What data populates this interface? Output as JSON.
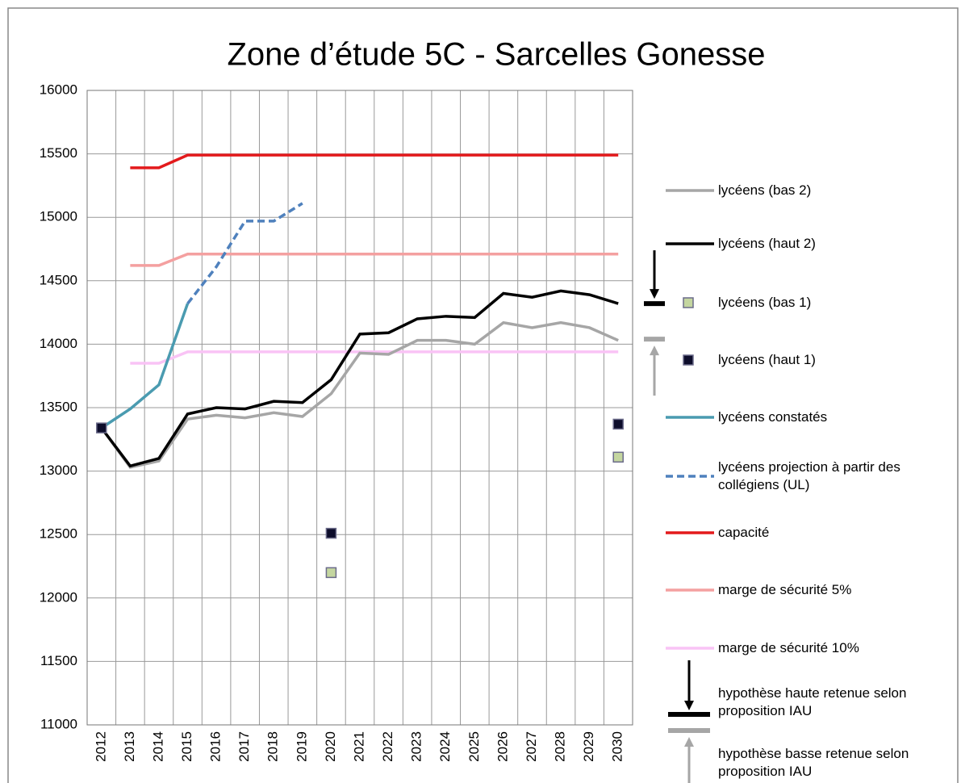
{
  "chart_data": {
    "type": "line",
    "title": "Zone d’étude 5C - Sarcelles Gonesse",
    "categories": [
      "2012",
      "2013",
      "2014",
      "2015",
      "2016",
      "2017",
      "2018",
      "2019",
      "2020",
      "2021",
      "2022",
      "2023",
      "2024",
      "2025",
      "2026",
      "2027",
      "2028",
      "2029",
      "2030"
    ],
    "ylim": [
      11000,
      16000
    ],
    "yticks": [
      11000,
      11500,
      12000,
      12500,
      13000,
      13500,
      14000,
      14500,
      15000,
      15500,
      16000
    ],
    "grid": true,
    "series": [
      {
        "name": "lycéens (bas 2)",
        "color": "#a6a6a6",
        "style": "line",
        "values": [
          13340,
          13030,
          13080,
          13410,
          13440,
          13420,
          13460,
          13430,
          13610,
          13930,
          13920,
          14030,
          14030,
          14000,
          14170,
          14130,
          14170,
          14130,
          14030
        ]
      },
      {
        "name": "lycéens (haut 2)",
        "color": "#000000",
        "style": "line",
        "values": [
          13340,
          13040,
          13100,
          13450,
          13500,
          13490,
          13550,
          13540,
          13720,
          14080,
          14090,
          14200,
          14220,
          14210,
          14400,
          14370,
          14420,
          14390,
          14320
        ]
      },
      {
        "name": "lycéens (bas 1)",
        "color": "#c4d6a0",
        "style": "marker",
        "values": [
          null,
          null,
          null,
          null,
          null,
          null,
          null,
          null,
          12200,
          null,
          null,
          null,
          null,
          null,
          null,
          null,
          null,
          null,
          13110
        ]
      },
      {
        "name": "lycéens (haut 1)",
        "color": "#0d0d2b",
        "style": "marker",
        "values": [
          13340,
          null,
          null,
          null,
          null,
          null,
          null,
          null,
          12510,
          null,
          null,
          null,
          null,
          null,
          null,
          null,
          null,
          null,
          13370
        ]
      },
      {
        "name": "lycéens constatés",
        "color": "#4a9bb0",
        "style": "line",
        "values": [
          13340,
          13490,
          13680,
          14320,
          null,
          null,
          null,
          null,
          null,
          null,
          null,
          null,
          null,
          null,
          null,
          null,
          null,
          null,
          null
        ]
      },
      {
        "name": "lycéens projection à partir des collégiens (UL)",
        "color": "#4f81bd",
        "style": "dashed",
        "values": [
          null,
          null,
          null,
          14320,
          14610,
          14970,
          14970,
          15110,
          null,
          null,
          null,
          null,
          null,
          null,
          null,
          null,
          null,
          null,
          null
        ]
      },
      {
        "name": "capacité",
        "color": "#e31a1c",
        "style": "line",
        "values": [
          null,
          15390,
          15390,
          15490,
          15490,
          15490,
          15490,
          15490,
          15490,
          15490,
          15490,
          15490,
          15490,
          15490,
          15490,
          15490,
          15490,
          15490,
          15490
        ]
      },
      {
        "name": "marge de sécurité 5%",
        "color": "#f4a0a0",
        "style": "line",
        "values": [
          null,
          14620,
          14620,
          14710,
          14710,
          14710,
          14710,
          14710,
          14710,
          14710,
          14710,
          14710,
          14710,
          14710,
          14710,
          14710,
          14710,
          14710,
          14710
        ]
      },
      {
        "name": "marge de sécurité 10%",
        "color": "#f9c3f5",
        "style": "line",
        "values": [
          null,
          13850,
          13850,
          13940,
          13940,
          13940,
          13940,
          13940,
          13940,
          13940,
          13940,
          13940,
          13940,
          13940,
          13940,
          13940,
          13940,
          13940,
          13940
        ]
      },
      {
        "name": "hypothèse haute retenue selon proposition IAU",
        "color": "#000000",
        "style": "hypothesis-high",
        "values": [
          null,
          null,
          null,
          null,
          null,
          null,
          null,
          null,
          null,
          null,
          null,
          null,
          null,
          null,
          null,
          null,
          null,
          null,
          14320
        ]
      },
      {
        "name": "hypothèse basse retenue selon proposition IAU",
        "color": "#a6a6a6",
        "style": "hypothesis-low",
        "values": [
          null,
          null,
          null,
          null,
          null,
          null,
          null,
          null,
          null,
          null,
          null,
          null,
          null,
          null,
          null,
          null,
          null,
          null,
          14040
        ]
      }
    ]
  }
}
